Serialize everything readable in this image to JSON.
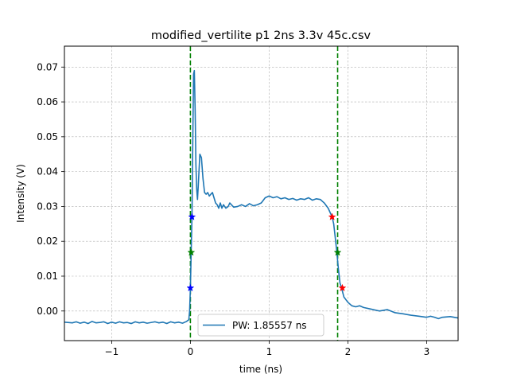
{
  "chart_data": {
    "type": "line",
    "title": "modified_vertilite p1 2ns 3.3v 45c.csv",
    "xlabel": "time (ns)",
    "ylabel": "Intensity (V)",
    "xlim": [
      -1.6,
      3.4
    ],
    "ylim": [
      -0.0085,
      0.076
    ],
    "xticks": [
      -1,
      0,
      1,
      2,
      3
    ],
    "yticks": [
      0.0,
      0.01,
      0.02,
      0.03,
      0.04,
      0.05,
      0.06,
      0.07
    ],
    "xtick_labels": [
      "−1",
      "0",
      "1",
      "2",
      "3"
    ],
    "ytick_labels": [
      "0.00",
      "0.01",
      "0.02",
      "0.03",
      "0.04",
      "0.05",
      "0.06",
      "0.07"
    ],
    "grid": true,
    "legend_position": "lower-center",
    "series": [
      {
        "name": "PW: 1.85557 ns",
        "color": "#1f77b4",
        "x": [
          -1.6,
          -1.5,
          -1.45,
          -1.4,
          -1.35,
          -1.3,
          -1.25,
          -1.2,
          -1.15,
          -1.1,
          -1.05,
          -1.0,
          -0.95,
          -0.9,
          -0.85,
          -0.8,
          -0.75,
          -0.7,
          -0.65,
          -0.6,
          -0.55,
          -0.5,
          -0.45,
          -0.4,
          -0.35,
          -0.3,
          -0.25,
          -0.2,
          -0.15,
          -0.1,
          -0.05,
          -0.02,
          -0.01,
          0.0,
          0.01,
          0.02,
          0.03,
          0.04,
          0.05,
          0.06,
          0.07,
          0.08,
          0.09,
          0.1,
          0.12,
          0.14,
          0.16,
          0.18,
          0.2,
          0.22,
          0.24,
          0.26,
          0.28,
          0.3,
          0.32,
          0.34,
          0.36,
          0.38,
          0.4,
          0.42,
          0.45,
          0.48,
          0.5,
          0.55,
          0.6,
          0.65,
          0.7,
          0.75,
          0.8,
          0.85,
          0.9,
          0.95,
          1.0,
          1.05,
          1.1,
          1.15,
          1.2,
          1.25,
          1.3,
          1.35,
          1.4,
          1.45,
          1.5,
          1.55,
          1.6,
          1.65,
          1.7,
          1.75,
          1.8,
          1.82,
          1.84,
          1.86,
          1.88,
          1.9,
          1.92,
          1.95,
          2.0,
          2.05,
          2.1,
          2.15,
          2.2,
          2.3,
          2.4,
          2.5,
          2.6,
          2.7,
          2.8,
          2.9,
          3.0,
          3.05,
          3.1,
          3.15,
          3.2,
          3.3,
          3.4
        ],
        "y": [
          -0.0032,
          -0.0034,
          -0.0031,
          -0.0035,
          -0.0032,
          -0.0036,
          -0.003,
          -0.0034,
          -0.0033,
          -0.0031,
          -0.0036,
          -0.0032,
          -0.0035,
          -0.0031,
          -0.0034,
          -0.0033,
          -0.0036,
          -0.0031,
          -0.0034,
          -0.0032,
          -0.0035,
          -0.0033,
          -0.0031,
          -0.0034,
          -0.0032,
          -0.0036,
          -0.0031,
          -0.0034,
          -0.0032,
          -0.0035,
          -0.003,
          -0.0025,
          0.0,
          0.0066,
          0.0168,
          0.027,
          0.048,
          0.068,
          0.069,
          0.058,
          0.042,
          0.035,
          0.032,
          0.036,
          0.045,
          0.044,
          0.038,
          0.034,
          0.0335,
          0.034,
          0.033,
          0.0335,
          0.034,
          0.0325,
          0.031,
          0.0305,
          0.0295,
          0.031,
          0.0295,
          0.0305,
          0.0295,
          0.03,
          0.031,
          0.0298,
          0.03,
          0.0305,
          0.03,
          0.0308,
          0.0302,
          0.0305,
          0.031,
          0.0325,
          0.033,
          0.0325,
          0.0328,
          0.0322,
          0.0325,
          0.032,
          0.0323,
          0.0318,
          0.0322,
          0.032,
          0.0325,
          0.0318,
          0.0322,
          0.032,
          0.031,
          0.0295,
          0.027,
          0.025,
          0.021,
          0.0168,
          0.012,
          0.008,
          0.0066,
          0.004,
          0.0025,
          0.0015,
          0.0012,
          0.0015,
          0.001,
          0.0005,
          0.0,
          0.0004,
          -0.0005,
          -0.0008,
          -0.0012,
          -0.0015,
          -0.0018,
          -0.0015,
          -0.0018,
          -0.0022,
          -0.0018,
          -0.0016,
          -0.002
        ]
      }
    ],
    "vlines": [
      {
        "x": 0.0,
        "color": "#008000",
        "style": "dashed"
      },
      {
        "x": 1.87,
        "color": "#008000",
        "style": "dashed"
      }
    ],
    "markers": [
      {
        "x": 0.0,
        "y": 0.0066,
        "color": "#0000ff"
      },
      {
        "x": 0.02,
        "y": 0.027,
        "color": "#0000ff"
      },
      {
        "x": 0.01,
        "y": 0.0168,
        "color": "#008000"
      },
      {
        "x": 1.8,
        "y": 0.027,
        "color": "#ff0000"
      },
      {
        "x": 1.87,
        "y": 0.0168,
        "color": "#008000"
      },
      {
        "x": 1.93,
        "y": 0.0066,
        "color": "#ff0000"
      }
    ]
  }
}
